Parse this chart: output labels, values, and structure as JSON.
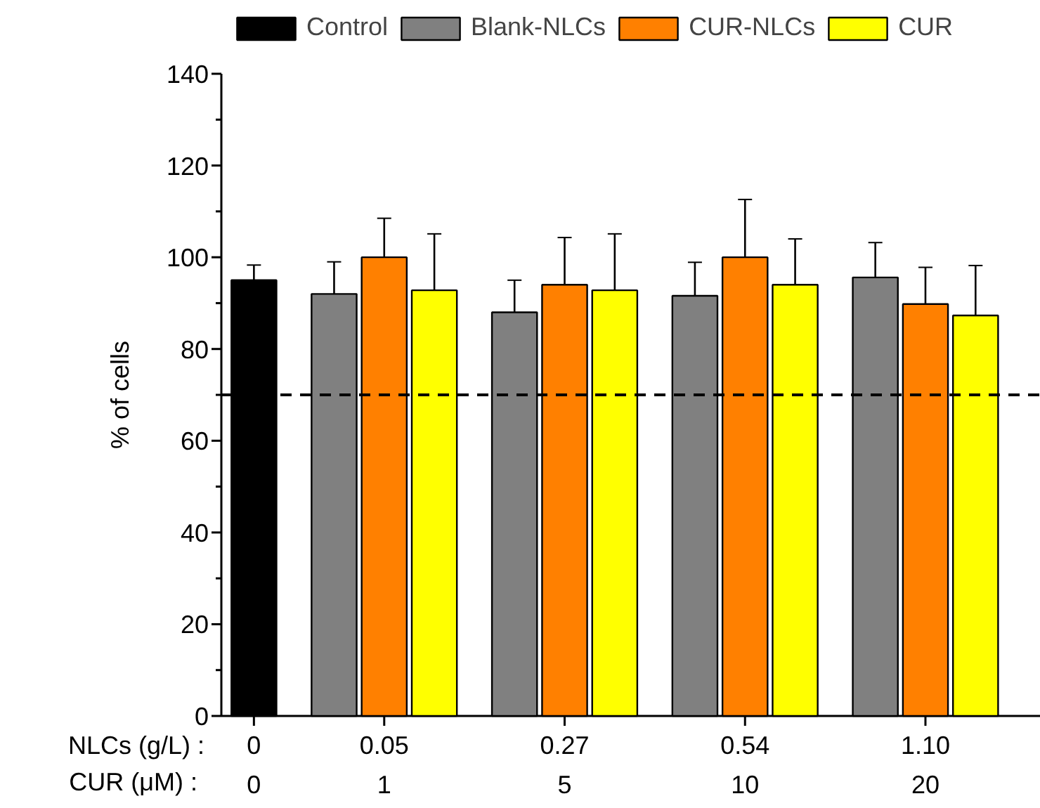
{
  "chart_data": {
    "type": "bar",
    "ylabel": "% of cells",
    "categories": [
      "0\n0",
      "0.05\n1",
      "0.27\n5",
      "0.54\n10",
      "1.10\n20"
    ],
    "series": [
      {
        "name": "Control",
        "color": "#000000",
        "values": [
          95,
          null,
          null,
          null,
          null
        ],
        "errors": [
          3.3,
          null,
          null,
          null,
          null
        ]
      },
      {
        "name": "Blank-NLCs",
        "color": "#808080",
        "values": [
          null,
          92,
          88,
          91.6,
          95.6
        ],
        "errors": [
          null,
          7,
          7,
          7.3,
          7.6
        ]
      },
      {
        "name": "CUR-NLCs",
        "color": "#ff8000",
        "values": [
          null,
          100,
          94,
          100,
          89.8
        ],
        "errors": [
          null,
          8.5,
          10.3,
          12.6,
          8
        ]
      },
      {
        "name": "CUR",
        "color": "#ffff00",
        "values": [
          null,
          92.8,
          92.8,
          94,
          87.3
        ],
        "errors": [
          null,
          12.3,
          12.3,
          10,
          10.9
        ]
      }
    ],
    "ylim": [
      0,
      140
    ],
    "yticks": [
      0,
      20,
      40,
      60,
      80,
      100,
      120,
      140
    ],
    "ref_lines": [
      {
        "axis": "y",
        "value": 70,
        "line_style": "dashed",
        "color": "#000000"
      }
    ],
    "annotations": [
      "NLCs (g/L) :",
      "CUR  (μM) :"
    ],
    "legend": "top",
    "grid": false
  }
}
